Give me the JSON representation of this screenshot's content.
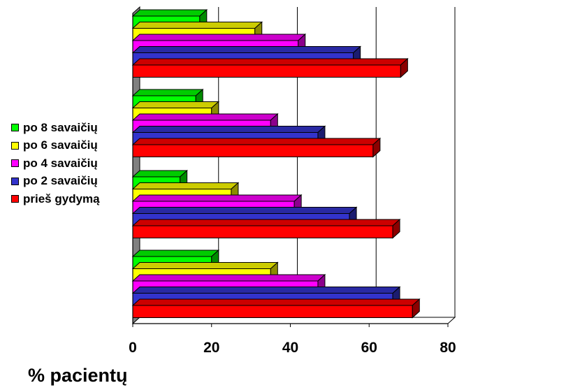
{
  "chart_data": {
    "type": "bar",
    "orientation": "horizontal",
    "three_d": true,
    "categories": [
      "",
      "",
      "",
      ""
    ],
    "series": [
      {
        "name": "prieš gydymą",
        "color": "#ff0000",
        "values": [
          71,
          66,
          61,
          68
        ]
      },
      {
        "name": "po 2 savaičių",
        "color": "#3333cc",
        "values": [
          66,
          55,
          47,
          56
        ]
      },
      {
        "name": "po 4 savaičių",
        "color": "#ff00ff",
        "values": [
          47,
          41,
          35,
          42
        ]
      },
      {
        "name": "po 6 savaičių",
        "color": "#ffff00",
        "values": [
          35,
          25,
          20,
          31
        ]
      },
      {
        "name": "po 8 savaičių",
        "color": "#00ff00",
        "values": [
          20,
          12,
          16,
          17
        ]
      }
    ],
    "legend_order": [
      "po 8 savaičių",
      "po 6 savaičių",
      "po 4 savaičių",
      "po 2 savaičių",
      "prieš gydymą"
    ],
    "xlim": [
      0,
      80
    ],
    "xticks": [
      0,
      20,
      40,
      60,
      80
    ],
    "xlabel": "% pacientų",
    "ylabel": "",
    "title": "",
    "grid": "vertical",
    "legend_position": "left"
  }
}
